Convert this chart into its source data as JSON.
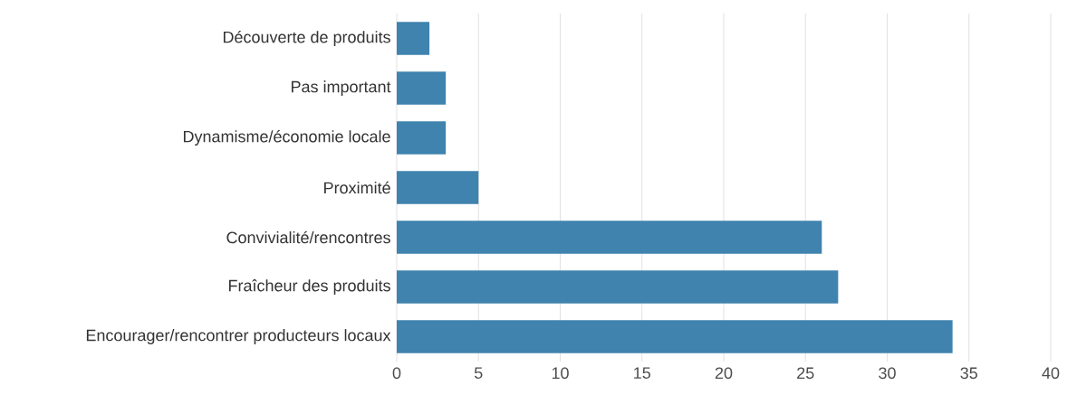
{
  "chart_data": {
    "type": "bar",
    "orientation": "horizontal",
    "categories": [
      "Découverte de produits",
      "Pas important",
      "Dynamisme/économie locale",
      "Proximité",
      "Convivialité/rencontres",
      "Fraîcheur des produits",
      "Encourager/rencontrer producteurs locaux"
    ],
    "values": [
      2,
      3,
      3,
      5,
      26,
      27,
      34
    ],
    "color": "#3f83ae",
    "xlim": [
      0,
      40
    ],
    "xticks": [
      0,
      5,
      10,
      15,
      20,
      25,
      30,
      35,
      40
    ],
    "grid": "x"
  }
}
